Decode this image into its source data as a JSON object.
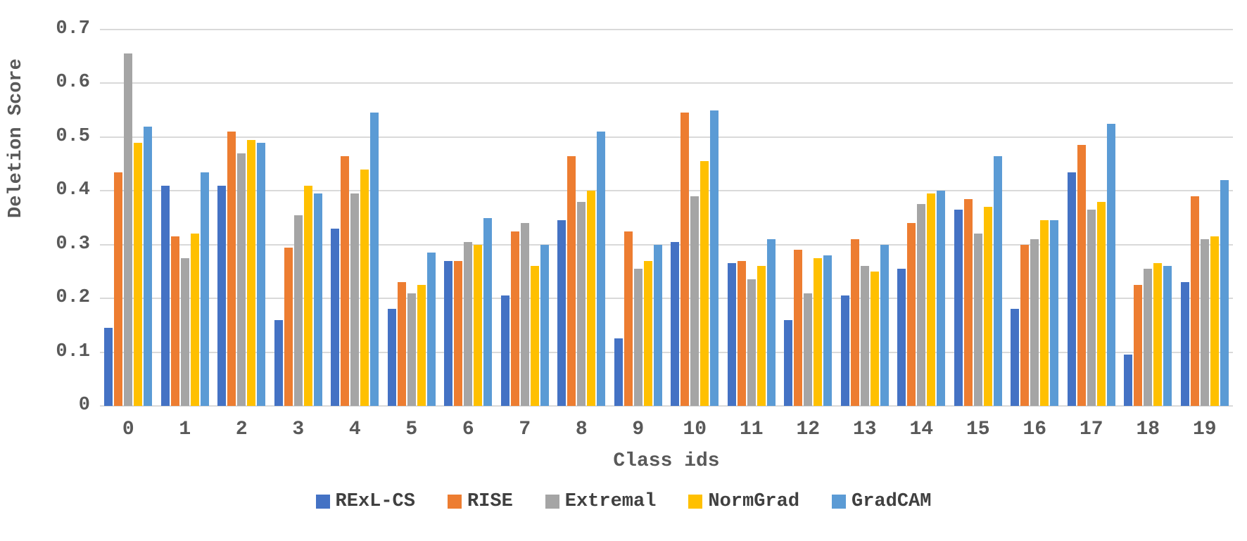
{
  "chart_data": {
    "type": "bar",
    "title": "",
    "xlabel": "Class ids",
    "ylabel": "Deletion Score",
    "ylim": [
      0,
      0.7
    ],
    "yticks": [
      "0",
      "0.1",
      "0.2",
      "0.3",
      "0.4",
      "0.5",
      "0.6",
      "0.7"
    ],
    "ytick_values": [
      0,
      0.1,
      0.2,
      0.3,
      0.4,
      0.5,
      0.6,
      0.7
    ],
    "grid": "horizontal",
    "legend_position": "bottom",
    "categories": [
      "0",
      "1",
      "2",
      "3",
      "4",
      "5",
      "6",
      "7",
      "8",
      "9",
      "10",
      "11",
      "12",
      "13",
      "14",
      "15",
      "16",
      "17",
      "18",
      "19"
    ],
    "series": [
      {
        "name": "RExL-CS",
        "color": "#4472c4",
        "values": [
          0.145,
          0.41,
          0.41,
          0.16,
          0.33,
          0.18,
          0.27,
          0.205,
          0.345,
          0.125,
          0.305,
          0.265,
          0.16,
          0.205,
          0.255,
          0.365,
          0.18,
          0.435,
          0.095,
          0.23
        ]
      },
      {
        "name": "RISE",
        "color": "#ed7d31",
        "values": [
          0.435,
          0.315,
          0.51,
          0.295,
          0.465,
          0.23,
          0.27,
          0.325,
          0.465,
          0.325,
          0.545,
          0.27,
          0.29,
          0.31,
          0.34,
          0.385,
          0.3,
          0.485,
          0.225,
          0.39
        ]
      },
      {
        "name": "Extremal",
        "color": "#a5a5a5",
        "values": [
          0.655,
          0.275,
          0.47,
          0.355,
          0.395,
          0.21,
          0.305,
          0.34,
          0.38,
          0.255,
          0.39,
          0.235,
          0.21,
          0.26,
          0.375,
          0.32,
          0.31,
          0.365,
          0.255,
          0.31
        ]
      },
      {
        "name": "NormGrad",
        "color": "#ffc000",
        "values": [
          0.49,
          0.32,
          0.495,
          0.41,
          0.44,
          0.225,
          0.3,
          0.26,
          0.4,
          0.27,
          0.455,
          0.26,
          0.275,
          0.25,
          0.395,
          0.37,
          0.345,
          0.38,
          0.265,
          0.315
        ]
      },
      {
        "name": "GradCAM",
        "color": "#5b9bd5",
        "values": [
          0.52,
          0.435,
          0.49,
          0.395,
          0.545,
          0.285,
          0.35,
          0.3,
          0.51,
          0.3,
          0.55,
          0.31,
          0.28,
          0.3,
          0.4,
          0.465,
          0.345,
          0.525,
          0.26,
          0.42
        ]
      }
    ],
    "colors": {
      "gridline": "#d9d9d9",
      "axis_text": "#595959",
      "legend_text": "#404040",
      "background": "#ffffff"
    }
  }
}
